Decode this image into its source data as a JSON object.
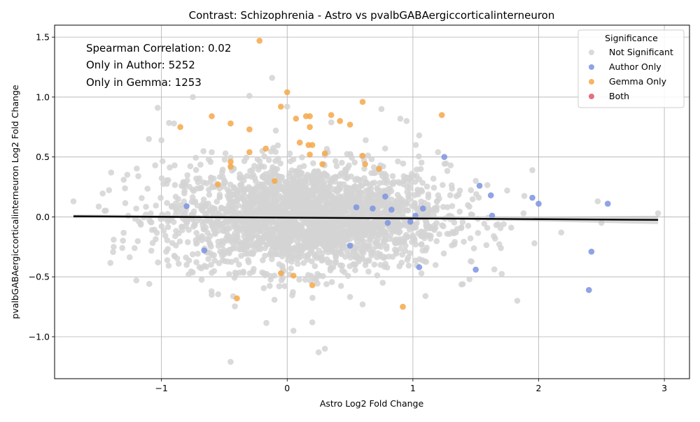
{
  "chart_data": {
    "type": "scatter",
    "title": "Contrast: Schizophrenia - Astro vs pvalbGABAergiccorticalinterneuron",
    "xlabel": "Astro Log2 Fold Change",
    "ylabel": "pvalbGABAergiccorticalinterneuron Log2 Fold Change",
    "xlim": [
      -1.85,
      3.2
    ],
    "ylim": [
      -1.35,
      1.6
    ],
    "x_ticks": [
      -1,
      0,
      1,
      2,
      3
    ],
    "x_tick_labels": [
      "−1",
      "0",
      "1",
      "2",
      "3"
    ],
    "y_ticks": [
      -1.0,
      -0.5,
      0.0,
      0.5,
      1.0,
      1.5
    ],
    "y_tick_labels": [
      "−1.0",
      "−0.5",
      "0.0",
      "0.5",
      "1.0",
      "1.5"
    ],
    "grid": true,
    "annotations": [
      "Spearman Correlation: 0.02",
      "Only in Author: 5252",
      "Only in Gemma: 1253"
    ],
    "legend": {
      "title": "Significance",
      "placement": "top-right",
      "entries": [
        {
          "label": "Not Significant",
          "color": "#d3d3d3"
        },
        {
          "label": "Author Only",
          "color": "#7b93e0"
        },
        {
          "label": "Gemma Only",
          "color": "#f5a84a"
        },
        {
          "label": "Both",
          "color": "#e0566e"
        }
      ]
    },
    "regression_line": {
      "x": [
        -1.7,
        2.95
      ],
      "y": [
        0.005,
        -0.025
      ],
      "color": "#000000"
    },
    "not_significant_cloud": {
      "center": [
        0.15,
        0.0
      ],
      "spread_x": 0.55,
      "spread_y": 0.22,
      "count": 2600
    },
    "series": [
      {
        "name": "Not Significant",
        "color": "#d3d3d3",
        "points": [
          [
            -1.7,
            0.13
          ],
          [
            -1.4,
            0.37
          ],
          [
            -1.38,
            -0.19
          ],
          [
            -1.38,
            -0.25
          ],
          [
            -1.3,
            0.31
          ],
          [
            -1.2,
            -0.53
          ],
          [
            -1.1,
            0.65
          ],
          [
            -1.05,
            0.43
          ],
          [
            -1.03,
            0.91
          ],
          [
            -1.0,
            0.64
          ],
          [
            -0.9,
            0.78
          ],
          [
            -0.75,
            1.0
          ],
          [
            -0.6,
            0.54
          ],
          [
            -0.45,
            -1.21
          ],
          [
            -0.3,
            1.01
          ],
          [
            -0.12,
            1.16
          ],
          [
            0.0,
            0.92
          ],
          [
            0.05,
            -0.95
          ],
          [
            0.25,
            -1.13
          ],
          [
            0.3,
            -1.1
          ],
          [
            0.75,
            0.9
          ],
          [
            0.9,
            0.82
          ],
          [
            0.95,
            0.8
          ],
          [
            1.05,
            0.68
          ],
          [
            1.2,
            0.54
          ],
          [
            1.3,
            0.43
          ],
          [
            1.45,
            -0.52
          ],
          [
            1.5,
            0.3
          ],
          [
            1.7,
            -0.26
          ],
          [
            1.75,
            0.22
          ],
          [
            1.83,
            -0.7
          ],
          [
            1.88,
            0.03
          ],
          [
            1.95,
            0.39
          ],
          [
            2.18,
            -0.13
          ],
          [
            2.47,
            0.13
          ],
          [
            2.5,
            -0.05
          ],
          [
            2.95,
            0.03
          ],
          [
            -0.8,
            -0.4
          ],
          [
            -0.6,
            -0.65
          ],
          [
            0.6,
            -0.73
          ],
          [
            1.1,
            -0.66
          ],
          [
            0.2,
            -0.88
          ]
        ]
      },
      {
        "name": "Author Only",
        "color": "#7b93e0",
        "points": [
          [
            -0.8,
            0.09
          ],
          [
            -0.66,
            -0.28
          ],
          [
            0.5,
            -0.24
          ],
          [
            0.55,
            0.08
          ],
          [
            0.68,
            0.07
          ],
          [
            0.78,
            0.17
          ],
          [
            0.8,
            -0.05
          ],
          [
            0.83,
            0.06
          ],
          [
            0.98,
            -0.04
          ],
          [
            1.02,
            0.01
          ],
          [
            1.05,
            -0.42
          ],
          [
            1.08,
            0.07
          ],
          [
            1.25,
            0.5
          ],
          [
            1.5,
            -0.44
          ],
          [
            1.53,
            0.26
          ],
          [
            1.62,
            0.18
          ],
          [
            1.63,
            0.01
          ],
          [
            1.95,
            0.16
          ],
          [
            2.0,
            0.11
          ],
          [
            2.4,
            -0.61
          ],
          [
            2.42,
            -0.29
          ],
          [
            2.55,
            0.11
          ]
        ]
      },
      {
        "name": "Gemma Only",
        "color": "#f5a84a",
        "points": [
          [
            -0.22,
            1.47
          ],
          [
            0.0,
            1.04
          ],
          [
            -0.6,
            0.84
          ],
          [
            -0.45,
            0.78
          ],
          [
            -0.3,
            0.73
          ],
          [
            -0.85,
            0.75
          ],
          [
            -0.05,
            0.92
          ],
          [
            0.07,
            0.82
          ],
          [
            0.15,
            0.84
          ],
          [
            0.18,
            0.84
          ],
          [
            0.18,
            0.75
          ],
          [
            0.35,
            0.85
          ],
          [
            0.42,
            0.8
          ],
          [
            0.5,
            0.77
          ],
          [
            0.6,
            0.96
          ],
          [
            1.23,
            0.85
          ],
          [
            0.1,
            0.62
          ],
          [
            0.17,
            0.6
          ],
          [
            0.2,
            0.6
          ],
          [
            0.3,
            0.53
          ],
          [
            0.18,
            0.52
          ],
          [
            -0.17,
            0.57
          ],
          [
            -0.3,
            0.54
          ],
          [
            -0.45,
            0.46
          ],
          [
            -0.45,
            0.42
          ],
          [
            -0.55,
            0.27
          ],
          [
            0.28,
            0.44
          ],
          [
            0.6,
            0.51
          ],
          [
            0.62,
            0.44
          ],
          [
            0.73,
            0.4
          ],
          [
            0.92,
            -0.75
          ],
          [
            0.2,
            -0.57
          ],
          [
            -0.4,
            -0.68
          ],
          [
            0.05,
            -0.49
          ],
          [
            -0.05,
            -0.47
          ],
          [
            -0.1,
            0.3
          ]
        ]
      },
      {
        "name": "Both",
        "color": "#e0566e",
        "points": []
      }
    ]
  }
}
